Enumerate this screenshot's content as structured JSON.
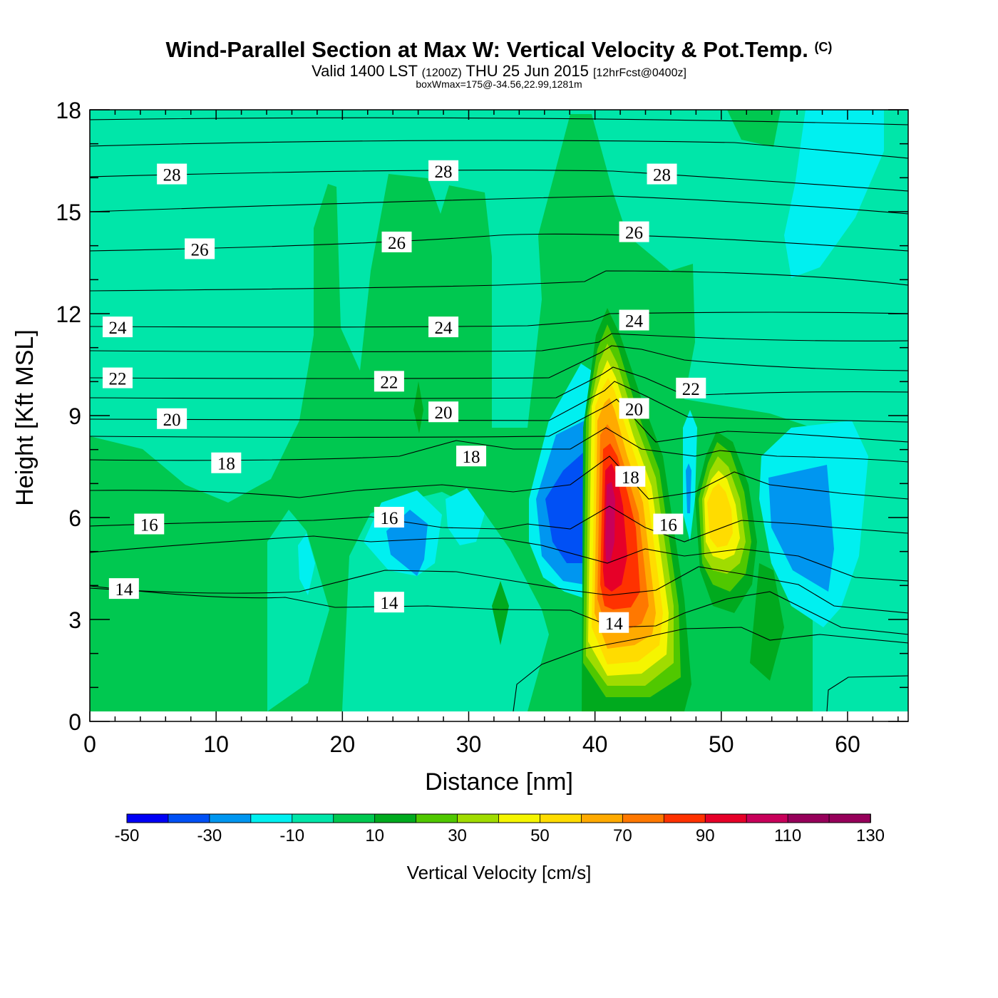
{
  "header": {
    "title": "Wind-Parallel Section at Max W: Vertical Velocity & Pot.Temp.",
    "copyright": "(C)",
    "valid_prefix": "Valid 1400 LST",
    "valid_utc": "(1200Z)",
    "valid_date": "THU 25 Jun 2015",
    "forecast": "[12hrFcst@0400z]",
    "box_info": "boxWmax=175@-34.56,22.99,1281m"
  },
  "colors": {
    "background_field": "#00e6a9",
    "palette": [
      "#0000f5",
      "#0050f5",
      "#0096f0",
      "#00f0f0",
      "#00e6a9",
      "#00c850",
      "#00aa1e",
      "#50c800",
      "#a0dc00",
      "#f5f500",
      "#ffdc00",
      "#ffaa00",
      "#ff7800",
      "#ff3200",
      "#e60028",
      "#c8005a",
      "#96005a"
    ]
  },
  "chart_data": {
    "type": "heatmap",
    "xlabel": "Distance [nm]",
    "ylabel": "Height [Kft MSL]",
    "xlim": [
      0,
      64.8
    ],
    "ylim": [
      0,
      18
    ],
    "xticks": [
      0,
      10,
      20,
      30,
      40,
      50,
      60
    ],
    "yticks": [
      0,
      3,
      6,
      9,
      12,
      15,
      18
    ],
    "colorbar": {
      "title": "Vertical Velocity [cm/s]",
      "levels": [
        -50,
        -40,
        -30,
        -20,
        -10,
        0,
        10,
        20,
        30,
        40,
        50,
        60,
        70,
        80,
        90,
        100,
        110,
        120,
        130
      ],
      "labels": [
        "-50",
        "-30",
        "-10",
        "10",
        "30",
        "50",
        "70",
        "90",
        "110",
        "130"
      ]
    },
    "isentrope_values": [
      12,
      13,
      14,
      15,
      16,
      17,
      18,
      19,
      20,
      21,
      22,
      23,
      24,
      25,
      26,
      27,
      28,
      29
    ],
    "contour_labels": [
      {
        "text": "28",
        "x": 6.5,
        "y": 16.1
      },
      {
        "text": "28",
        "x": 28,
        "y": 16.2
      },
      {
        "text": "28",
        "x": 45.3,
        "y": 16.1
      },
      {
        "text": "26",
        "x": 8.7,
        "y": 13.9
      },
      {
        "text": "26",
        "x": 24.3,
        "y": 14.1
      },
      {
        "text": "26",
        "x": 43.1,
        "y": 14.4
      },
      {
        "text": "24",
        "x": 2.2,
        "y": 11.6
      },
      {
        "text": "24",
        "x": 28,
        "y": 11.6
      },
      {
        "text": "24",
        "x": 43.1,
        "y": 11.8
      },
      {
        "text": "22",
        "x": 2.2,
        "y": 10.1
      },
      {
        "text": "22",
        "x": 23.7,
        "y": 10
      },
      {
        "text": "22",
        "x": 47.6,
        "y": 9.8
      },
      {
        "text": "20",
        "x": 6.5,
        "y": 8.9
      },
      {
        "text": "20",
        "x": 28,
        "y": 9.1
      },
      {
        "text": "20",
        "x": 43.1,
        "y": 9.2
      },
      {
        "text": "18",
        "x": 10.8,
        "y": 7.6
      },
      {
        "text": "18",
        "x": 30.2,
        "y": 7.8
      },
      {
        "text": "18",
        "x": 42.8,
        "y": 7.2
      },
      {
        "text": "16",
        "x": 4.7,
        "y": 5.8
      },
      {
        "text": "16",
        "x": 23.7,
        "y": 6
      },
      {
        "text": "16",
        "x": 45.8,
        "y": 5.8
      },
      {
        "text": "14",
        "x": 2.7,
        "y": 3.9
      },
      {
        "text": "14",
        "x": 23.7,
        "y": 3.5
      },
      {
        "text": "14",
        "x": 41.5,
        "y": 2.9
      }
    ],
    "max_w_cm_s": 175,
    "notes": "Strongest updraft core (>100 cm/s) near x=41-43 nm, 3-8 Kft; downdrafts near x=37 nm and x=57 nm at ~6 Kft"
  }
}
